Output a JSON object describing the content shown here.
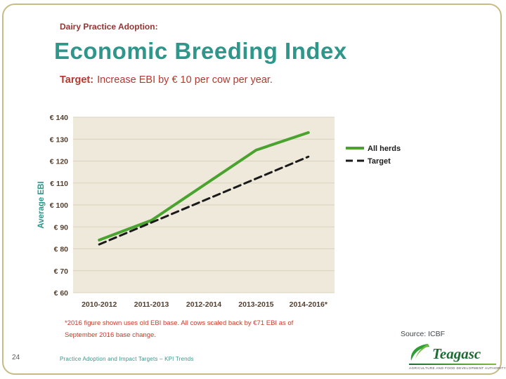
{
  "slide": {
    "eyebrow": "Dairy Practice Adoption:",
    "title": "Economic Breeding Index",
    "target_label": "Target:",
    "target_text": "Increase EBI by € 10 per cow per year.",
    "footnote_line1": "*2016 figure shown uses old EBI base. All cows scaled back by €71 EBI as of",
    "footnote_line2": "September 2016 base change.",
    "source": "Source: ICBF",
    "page_number": "24",
    "footer": "Practice Adoption and Impact Targets – KPI Trends"
  },
  "logo": {
    "name": "Teagasc",
    "tagline": "Agriculture and Food Development Authority"
  },
  "chart_data": {
    "type": "line",
    "categories": [
      "2010-2012",
      "2011-2013",
      "2012-2014",
      "2013-2015",
      "2014-2016*"
    ],
    "series": [
      {
        "name": "All herds",
        "values": [
          84,
          93,
          109,
          125,
          133
        ],
        "color": "#4ba32f",
        "width": 4,
        "dash": ""
      },
      {
        "name": "Target",
        "values": [
          82,
          92,
          102,
          112,
          122
        ],
        "color": "#1a1a1a",
        "width": 3,
        "dash": "10 6"
      }
    ],
    "title": "",
    "xlabel": "",
    "ylabel": "Average EBI",
    "ylim": [
      60,
      140
    ],
    "ytick_step": 10,
    "ytick_prefix": "€ ",
    "plot_bg": "#eee9da",
    "grid_color": "#d8d2bd",
    "legend_position": "right",
    "grid": "on"
  }
}
